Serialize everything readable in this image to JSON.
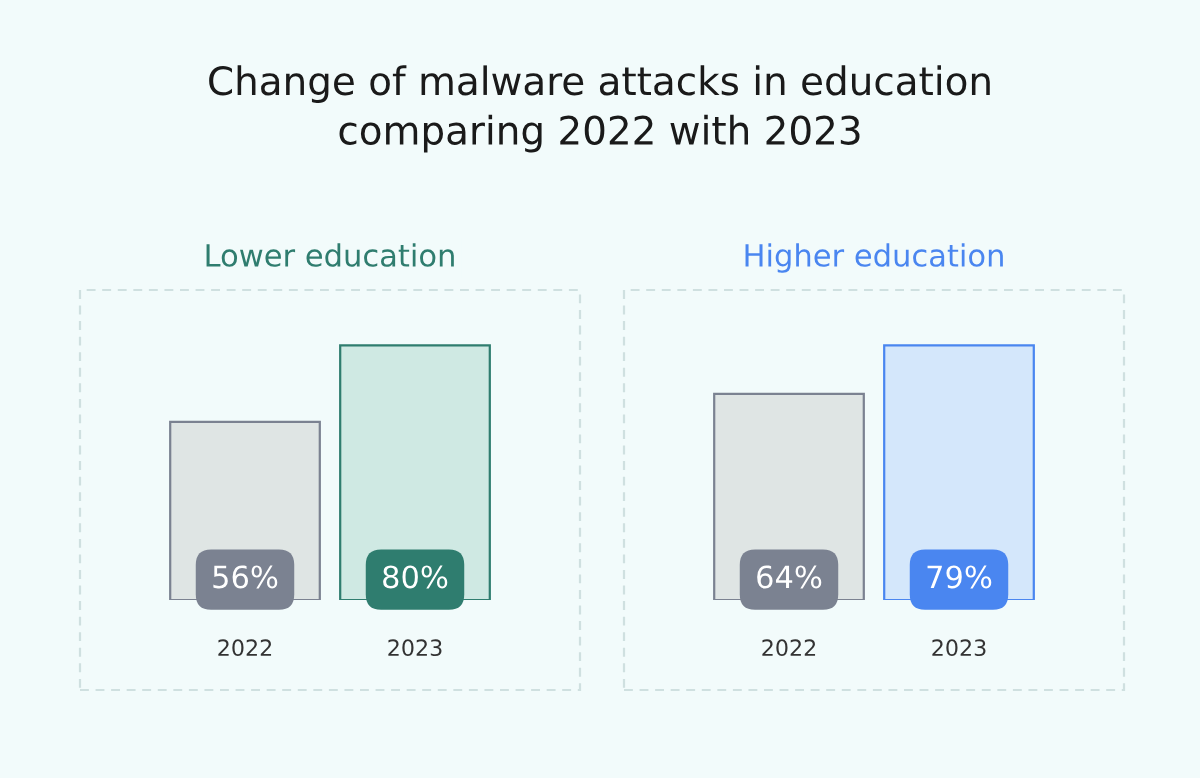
{
  "chart_data": [
    {
      "type": "other",
      "title": "Change of malware attacks in education\ncomparing 2022 with 2023"
    },
    {
      "type": "bar",
      "title": "Lower education",
      "categories": [
        "2022",
        "2023"
      ],
      "values": [
        56,
        80
      ],
      "value_labels": [
        "56%",
        "80%"
      ],
      "colors": [
        "#dfe5e4",
        "#cfe9e3"
      ]
    },
    {
      "type": "bar",
      "title": "Higher education",
      "categories": [
        "2022",
        "2023"
      ],
      "values": [
        64,
        79
      ],
      "value_labels": [
        "64%",
        "79%"
      ],
      "colors": [
        "#dfe5e4",
        "#d4e7fb"
      ]
    }
  ]
}
